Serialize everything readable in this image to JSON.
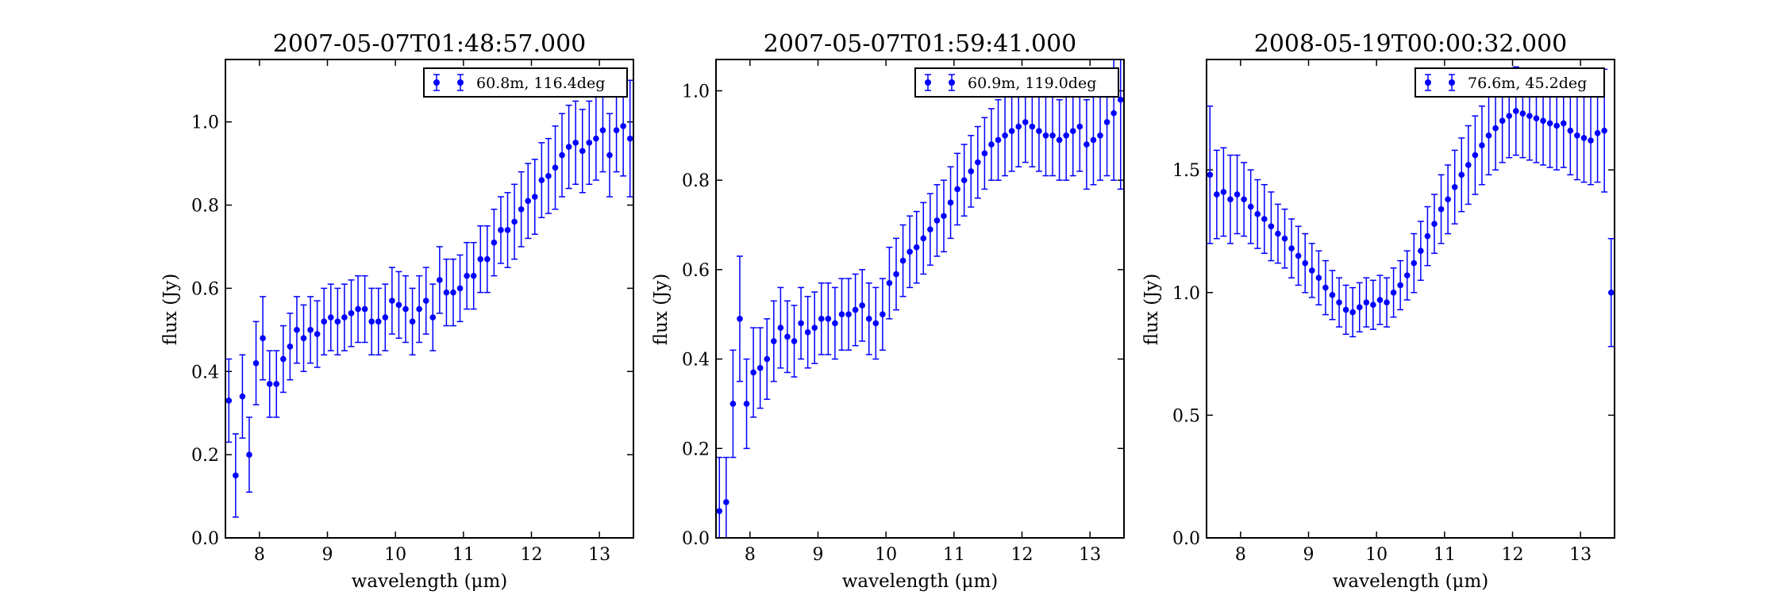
{
  "figure": {
    "background": "#ffffff",
    "marker_color": "#0000ff"
  },
  "chart_data": [
    {
      "type": "scatter",
      "title": "2007-05-07T01:48:57.000",
      "xlabel": "wavelength (μm)",
      "ylabel": "flux (Jy)",
      "xlim": [
        7.5,
        13.5
      ],
      "ylim": [
        0.0,
        1.15
      ],
      "xticks": [
        8,
        9,
        10,
        11,
        12,
        13
      ],
      "yticks": [
        0.0,
        0.2,
        0.4,
        0.6,
        0.8,
        1.0
      ],
      "xtick_labels": [
        "8",
        "9",
        "10",
        "11",
        "12",
        "13"
      ],
      "ytick_labels": [
        "0.0",
        "0.2",
        "0.4",
        "0.6",
        "0.8",
        "1.0"
      ],
      "grid": false,
      "legend_position": "upper-right",
      "series": [
        {
          "name": "60.8m, 116.4deg",
          "x": [
            7.55,
            7.65,
            7.75,
            7.85,
            7.95,
            8.05,
            8.15,
            8.25,
            8.35,
            8.45,
            8.55,
            8.65,
            8.75,
            8.85,
            8.95,
            9.05,
            9.15,
            9.25,
            9.35,
            9.45,
            9.55,
            9.65,
            9.75,
            9.85,
            9.95,
            10.05,
            10.15,
            10.25,
            10.35,
            10.45,
            10.55,
            10.65,
            10.75,
            10.85,
            10.95,
            11.05,
            11.15,
            11.25,
            11.35,
            11.45,
            11.55,
            11.65,
            11.75,
            11.85,
            11.95,
            12.05,
            12.15,
            12.25,
            12.35,
            12.45,
            12.55,
            12.65,
            12.75,
            12.85,
            12.95,
            13.05,
            13.15,
            13.25,
            13.35,
            13.45
          ],
          "y": [
            0.33,
            0.15,
            0.34,
            0.2,
            0.42,
            0.48,
            0.37,
            0.37,
            0.43,
            0.46,
            0.5,
            0.48,
            0.5,
            0.49,
            0.52,
            0.53,
            0.52,
            0.53,
            0.54,
            0.55,
            0.55,
            0.52,
            0.52,
            0.53,
            0.57,
            0.56,
            0.55,
            0.52,
            0.55,
            0.57,
            0.53,
            0.62,
            0.59,
            0.59,
            0.6,
            0.63,
            0.63,
            0.67,
            0.67,
            0.71,
            0.74,
            0.74,
            0.76,
            0.79,
            0.81,
            0.82,
            0.86,
            0.87,
            0.89,
            0.92,
            0.94,
            0.95,
            0.93,
            0.95,
            0.96,
            0.98,
            0.92,
            0.98,
            0.99,
            0.96
          ],
          "yerr": [
            0.1,
            0.1,
            0.1,
            0.09,
            0.1,
            0.1,
            0.08,
            0.08,
            0.08,
            0.08,
            0.08,
            0.08,
            0.08,
            0.08,
            0.08,
            0.08,
            0.08,
            0.08,
            0.08,
            0.08,
            0.08,
            0.08,
            0.08,
            0.08,
            0.08,
            0.08,
            0.08,
            0.08,
            0.08,
            0.08,
            0.08,
            0.08,
            0.08,
            0.08,
            0.08,
            0.08,
            0.08,
            0.08,
            0.08,
            0.08,
            0.08,
            0.09,
            0.09,
            0.09,
            0.09,
            0.09,
            0.09,
            0.09,
            0.1,
            0.1,
            0.1,
            0.1,
            0.1,
            0.1,
            0.1,
            0.1,
            0.1,
            0.1,
            0.12,
            0.14
          ]
        }
      ]
    },
    {
      "type": "scatter",
      "title": "2007-05-07T01:59:41.000",
      "xlabel": "wavelength (μm)",
      "ylabel": "flux (Jy)",
      "xlim": [
        7.5,
        13.5
      ],
      "ylim": [
        0.0,
        1.07
      ],
      "xticks": [
        8,
        9,
        10,
        11,
        12,
        13
      ],
      "yticks": [
        0.0,
        0.2,
        0.4,
        0.6,
        0.8,
        1.0
      ],
      "xtick_labels": [
        "8",
        "9",
        "10",
        "11",
        "12",
        "13"
      ],
      "ytick_labels": [
        "0.0",
        "0.2",
        "0.4",
        "0.6",
        "0.8",
        "1.0"
      ],
      "grid": false,
      "legend_position": "upper-right",
      "series": [
        {
          "name": "60.9m, 119.0deg",
          "x": [
            7.55,
            7.65,
            7.75,
            7.85,
            7.95,
            8.05,
            8.15,
            8.25,
            8.35,
            8.45,
            8.55,
            8.65,
            8.75,
            8.85,
            8.95,
            9.05,
            9.15,
            9.25,
            9.35,
            9.45,
            9.55,
            9.65,
            9.75,
            9.85,
            9.95,
            10.05,
            10.15,
            10.25,
            10.35,
            10.45,
            10.55,
            10.65,
            10.75,
            10.85,
            10.95,
            11.05,
            11.15,
            11.25,
            11.35,
            11.45,
            11.55,
            11.65,
            11.75,
            11.85,
            11.95,
            12.05,
            12.15,
            12.25,
            12.35,
            12.45,
            12.55,
            12.65,
            12.75,
            12.85,
            12.95,
            13.05,
            13.15,
            13.25,
            13.35,
            13.45
          ],
          "y": [
            0.06,
            0.08,
            0.3,
            0.49,
            0.3,
            0.37,
            0.38,
            0.4,
            0.44,
            0.47,
            0.45,
            0.44,
            0.48,
            0.46,
            0.47,
            0.49,
            0.49,
            0.48,
            0.5,
            0.5,
            0.51,
            0.52,
            0.49,
            0.48,
            0.5,
            0.57,
            0.59,
            0.62,
            0.64,
            0.65,
            0.67,
            0.69,
            0.71,
            0.72,
            0.75,
            0.78,
            0.8,
            0.82,
            0.84,
            0.86,
            0.88,
            0.89,
            0.9,
            0.91,
            0.92,
            0.93,
            0.92,
            0.91,
            0.9,
            0.9,
            0.89,
            0.9,
            0.91,
            0.92,
            0.88,
            0.89,
            0.9,
            0.93,
            0.95,
            0.98
          ],
          "yerr": [
            0.12,
            0.1,
            0.12,
            0.14,
            0.1,
            0.1,
            0.09,
            0.09,
            0.09,
            0.09,
            0.08,
            0.08,
            0.08,
            0.08,
            0.08,
            0.08,
            0.08,
            0.08,
            0.08,
            0.08,
            0.08,
            0.08,
            0.08,
            0.08,
            0.08,
            0.08,
            0.08,
            0.08,
            0.08,
            0.08,
            0.08,
            0.08,
            0.08,
            0.08,
            0.08,
            0.08,
            0.08,
            0.08,
            0.08,
            0.08,
            0.08,
            0.09,
            0.09,
            0.09,
            0.09,
            0.09,
            0.09,
            0.09,
            0.09,
            0.09,
            0.09,
            0.1,
            0.1,
            0.1,
            0.1,
            0.1,
            0.1,
            0.12,
            0.15,
            0.2
          ]
        }
      ]
    },
    {
      "type": "scatter",
      "title": "2008-05-19T00:00:32.000",
      "xlabel": "wavelength (μm)",
      "ylabel": "flux (Jy)",
      "xlim": [
        7.5,
        13.5
      ],
      "ylim": [
        0.0,
        1.95
      ],
      "xticks": [
        8,
        9,
        10,
        11,
        12,
        13
      ],
      "yticks": [
        0.0,
        0.5,
        1.0,
        1.5
      ],
      "xtick_labels": [
        "8",
        "9",
        "10",
        "11",
        "12",
        "13"
      ],
      "ytick_labels": [
        "0.0",
        "0.5",
        "1.0",
        "1.5"
      ],
      "grid": false,
      "legend_position": "upper-right",
      "series": [
        {
          "name": "76.6m, 45.2deg",
          "x": [
            7.55,
            7.65,
            7.75,
            7.85,
            7.95,
            8.05,
            8.15,
            8.25,
            8.35,
            8.45,
            8.55,
            8.65,
            8.75,
            8.85,
            8.95,
            9.05,
            9.15,
            9.25,
            9.35,
            9.45,
            9.55,
            9.65,
            9.75,
            9.85,
            9.95,
            10.05,
            10.15,
            10.25,
            10.35,
            10.45,
            10.55,
            10.65,
            10.75,
            10.85,
            10.95,
            11.05,
            11.15,
            11.25,
            11.35,
            11.45,
            11.55,
            11.65,
            11.75,
            11.85,
            11.95,
            12.05,
            12.15,
            12.25,
            12.35,
            12.45,
            12.55,
            12.65,
            12.75,
            12.85,
            12.95,
            13.05,
            13.15,
            13.25,
            13.35,
            13.45
          ],
          "y": [
            1.48,
            1.4,
            1.41,
            1.38,
            1.4,
            1.38,
            1.35,
            1.32,
            1.3,
            1.27,
            1.24,
            1.22,
            1.18,
            1.15,
            1.12,
            1.09,
            1.06,
            1.02,
            0.99,
            0.96,
            0.93,
            0.92,
            0.94,
            0.96,
            0.95,
            0.97,
            0.96,
            1.0,
            1.03,
            1.07,
            1.12,
            1.17,
            1.23,
            1.28,
            1.34,
            1.38,
            1.43,
            1.48,
            1.52,
            1.56,
            1.6,
            1.64,
            1.67,
            1.7,
            1.72,
            1.74,
            1.73,
            1.72,
            1.71,
            1.7,
            1.69,
            1.68,
            1.69,
            1.66,
            1.64,
            1.63,
            1.62,
            1.65,
            1.66,
            1.0
          ],
          "yerr": [
            0.28,
            0.18,
            0.18,
            0.18,
            0.16,
            0.15,
            0.15,
            0.14,
            0.14,
            0.14,
            0.12,
            0.12,
            0.12,
            0.12,
            0.12,
            0.11,
            0.11,
            0.11,
            0.1,
            0.1,
            0.1,
            0.1,
            0.1,
            0.1,
            0.1,
            0.1,
            0.1,
            0.1,
            0.1,
            0.1,
            0.12,
            0.12,
            0.12,
            0.12,
            0.14,
            0.14,
            0.15,
            0.15,
            0.16,
            0.16,
            0.16,
            0.16,
            0.17,
            0.17,
            0.17,
            0.18,
            0.18,
            0.18,
            0.18,
            0.18,
            0.18,
            0.18,
            0.18,
            0.18,
            0.18,
            0.18,
            0.18,
            0.2,
            0.25,
            0.22
          ]
        }
      ]
    }
  ]
}
